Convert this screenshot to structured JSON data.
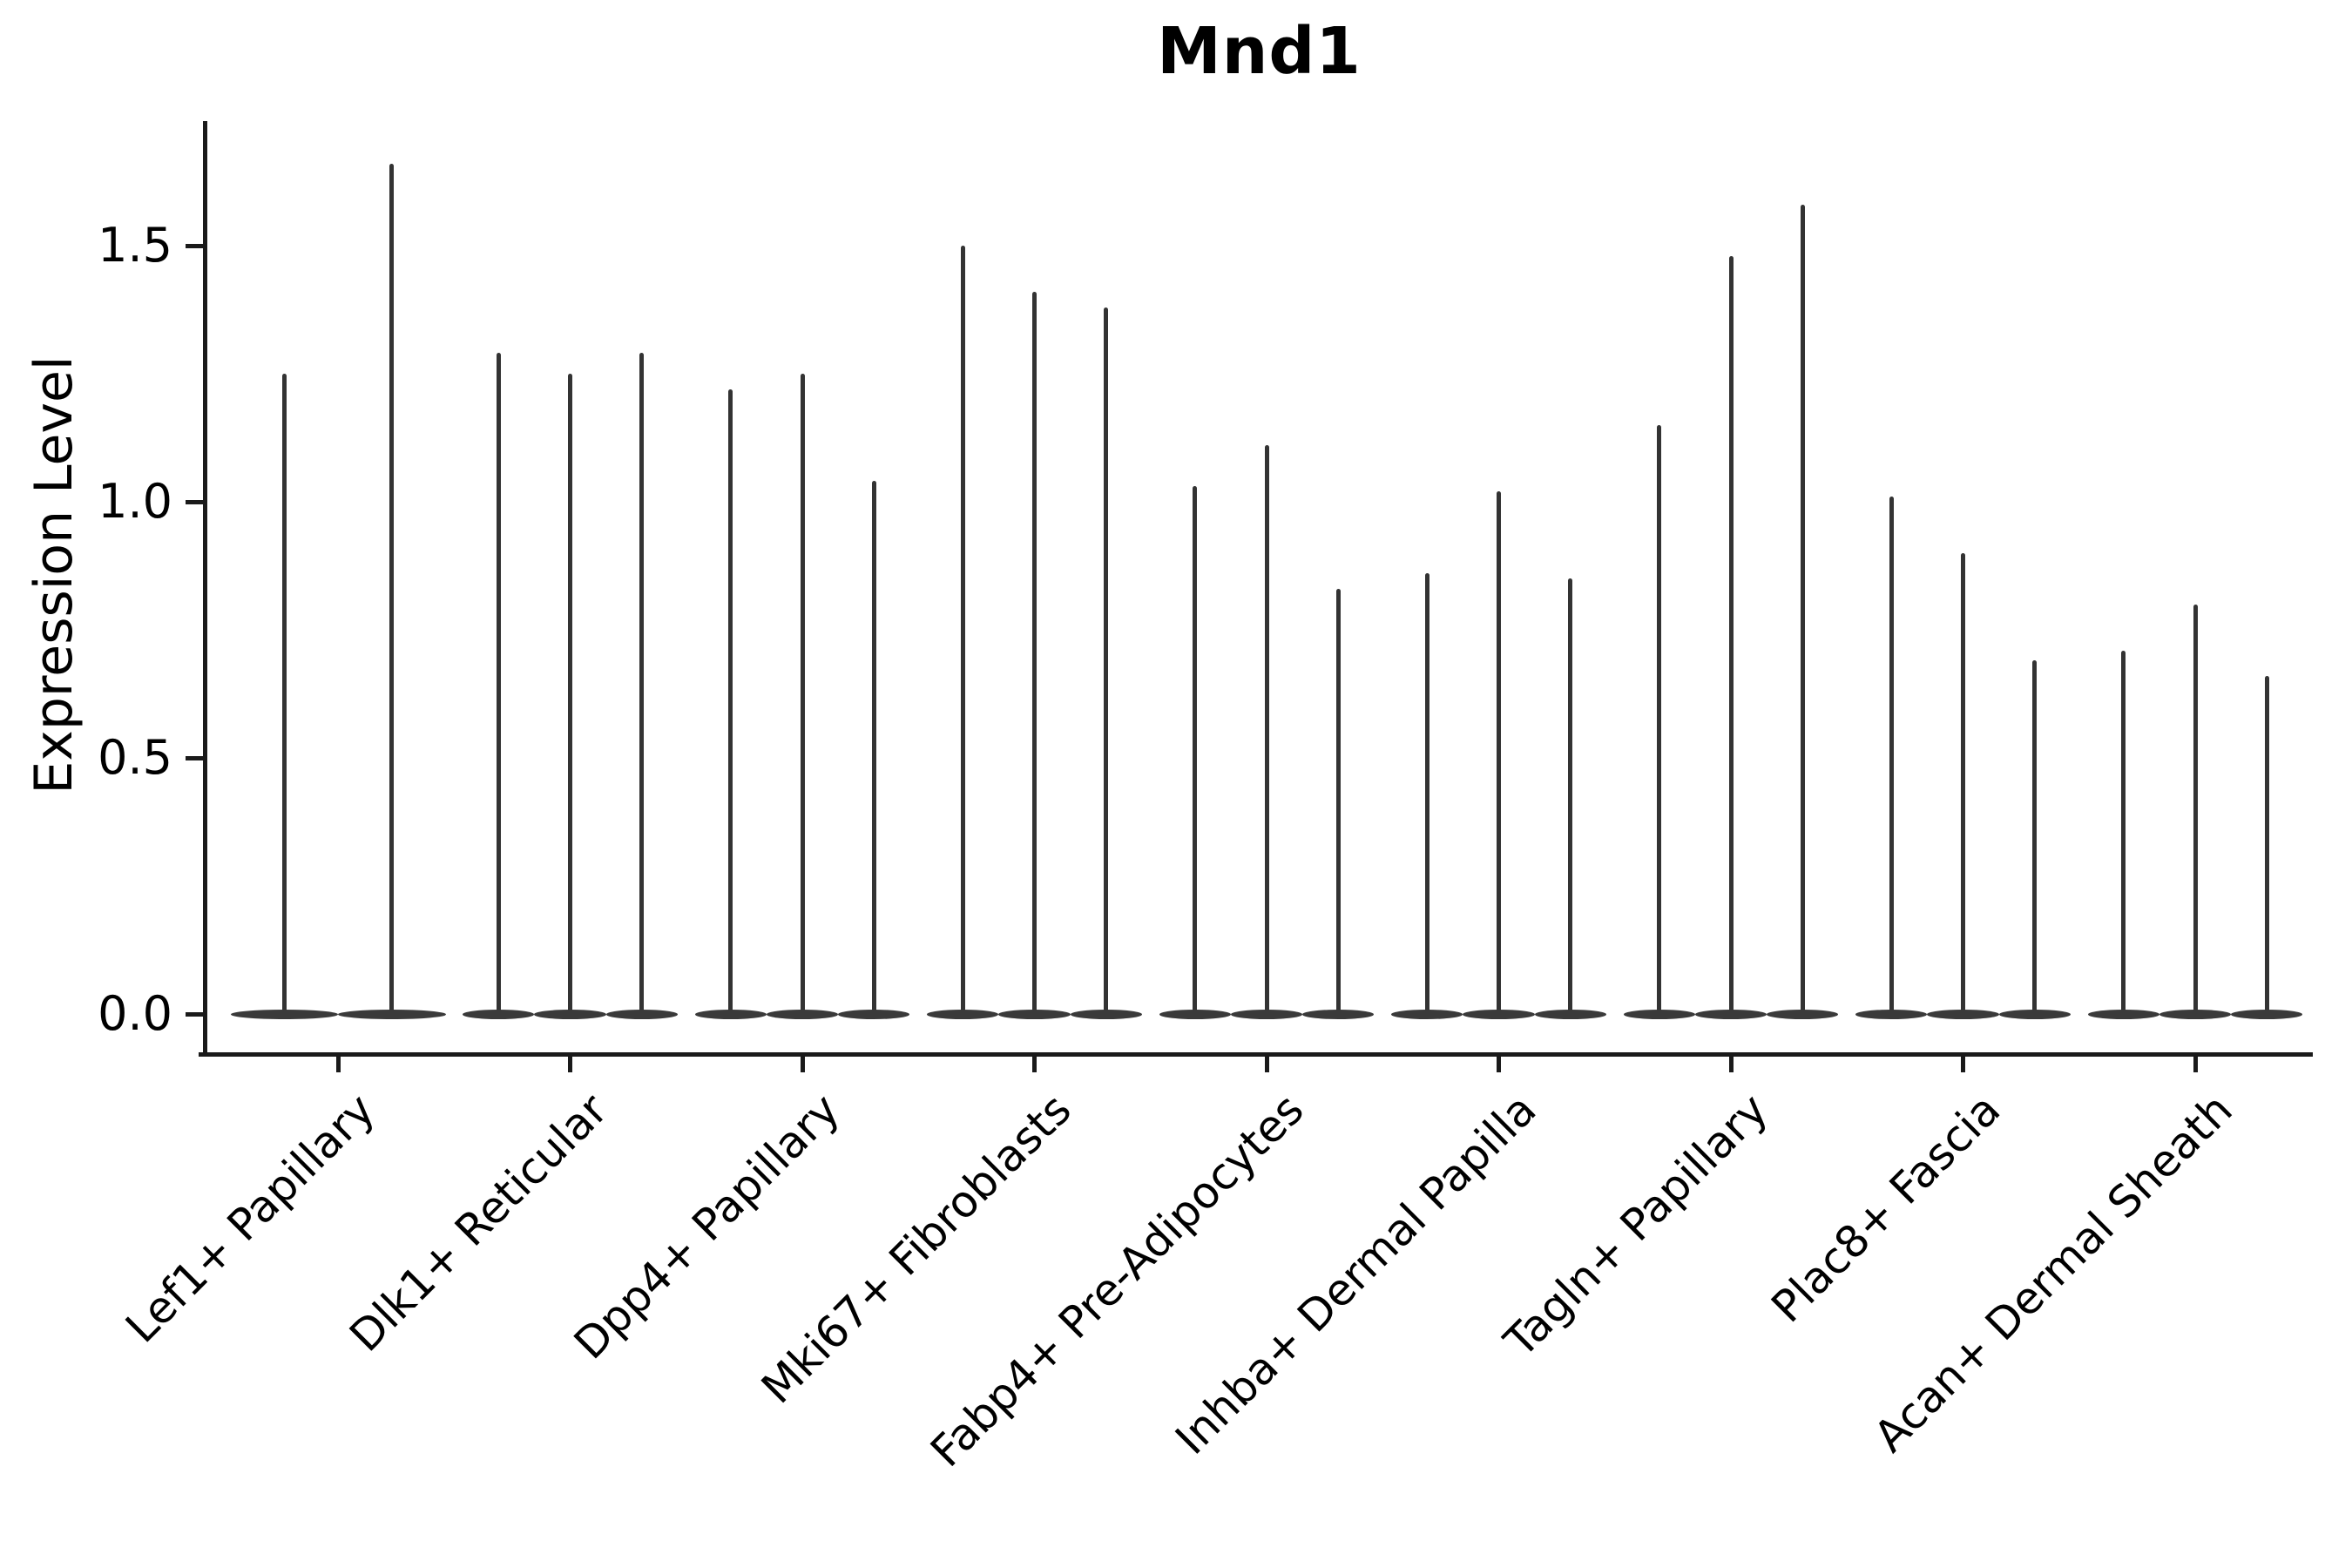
{
  "title": "Mnd1",
  "ylabel": "Expression Level",
  "colors": {
    "violin_fill": "#3a3a3a",
    "spike": "#333333",
    "axis": "#1a1a1a",
    "text": "#000000",
    "background": "#ffffff"
  },
  "chart_data": {
    "type": "violin",
    "title": "Mnd1",
    "xlabel": "",
    "ylabel": "Expression Level",
    "grid": false,
    "legend": "none",
    "ylim": [
      -0.14,
      1.74
    ],
    "yticks": [
      0.0,
      0.5,
      1.0,
      1.5
    ],
    "ytick_labels": [
      "0.0",
      "0.5",
      "1.0",
      "1.5"
    ],
    "categories": [
      "Lef1+ Papillary",
      "Dlk1+ Reticular",
      "Dpp4+ Papillary",
      "Mki67+ Fibroblasts",
      "Fabp4+ Pre-Adipocytes",
      "Inhba+ Dermal Papilla",
      "Tagln+ Papillary",
      "Plac8+ Fascia",
      "Acan+ Dermal Sheath"
    ],
    "series": [
      {
        "name": "Lef1+ Papillary",
        "violin_baseline": 0.0,
        "violin_max": [
          1.25,
          1.66
        ]
      },
      {
        "name": "Dlk1+ Reticular",
        "violin_baseline": 0.0,
        "violin_max": [
          1.29,
          1.25,
          1.29
        ]
      },
      {
        "name": "Dpp4+ Papillary",
        "violin_baseline": 0.0,
        "violin_max": [
          1.22,
          1.25,
          1.04
        ]
      },
      {
        "name": "Mki67+ Fibroblasts",
        "violin_baseline": 0.0,
        "violin_max": [
          1.5,
          1.41,
          1.38
        ]
      },
      {
        "name": "Fabp4+ Pre-Adipocytes",
        "violin_baseline": 0.0,
        "violin_max": [
          1.03,
          1.11,
          0.83
        ]
      },
      {
        "name": "Inhba+ Dermal Papilla",
        "violin_baseline": 0.0,
        "violin_max": [
          0.86,
          1.02,
          0.85
        ]
      },
      {
        "name": "Tagln+ Papillary",
        "violin_baseline": 0.0,
        "violin_max": [
          1.15,
          1.48,
          1.58
        ]
      },
      {
        "name": "Plac8+ Fascia",
        "violin_baseline": 0.0,
        "violin_max": [
          1.01,
          0.9,
          0.69
        ]
      },
      {
        "name": "Acan+ Dermal Sheath",
        "violin_baseline": 0.0,
        "violin_max": [
          0.71,
          0.8,
          0.66
        ]
      }
    ],
    "description": "Violin plot of Mnd1 expression level across nine fibroblast cell populations; each group contains two or three narrow violins whose density mass sits at 0 with a thin tail reaching the listed maximum expression value."
  }
}
